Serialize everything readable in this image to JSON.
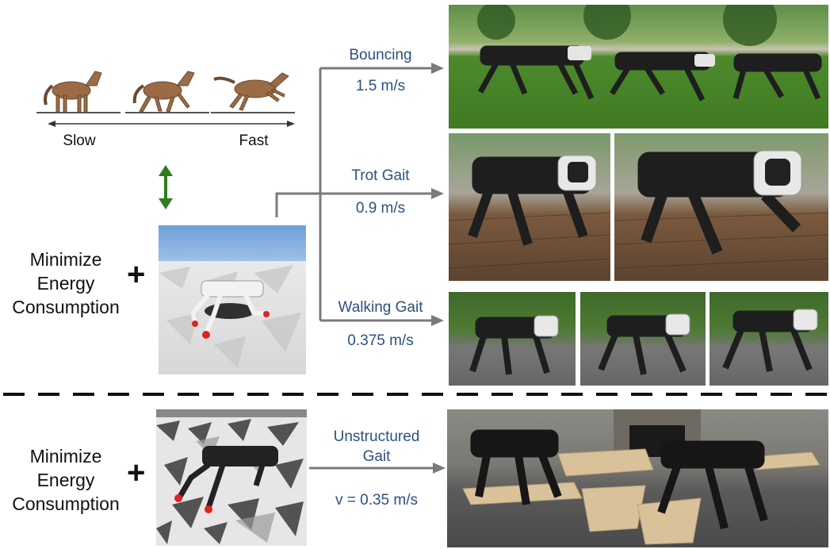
{
  "speed_scale": {
    "slow": "Slow",
    "fast": "Fast"
  },
  "objective_top": {
    "line1": "Minimize",
    "line2": "Energy",
    "line3": "Consumption",
    "plus": "+"
  },
  "objective_bottom": {
    "line1": "Minimize",
    "line2": "Energy",
    "line3": "Consumption",
    "plus": "+"
  },
  "gaits": [
    {
      "name": "Bouncing",
      "speed": "1.5 m/s"
    },
    {
      "name": "Trot Gait",
      "speed": "0.9 m/s"
    },
    {
      "name": "Walking Gait",
      "speed": "0.375 m/s"
    }
  ],
  "unstructured": {
    "line1": "Unstructured",
    "line2": "Gait",
    "speed": "v = 0.35 m/s"
  },
  "colors": {
    "arrow": "#7a7a7a",
    "label_blue": "#2f4f7f",
    "green_arrow": "#2e7d1e",
    "horse": "#9a6b45",
    "grass": "#4d8a2c",
    "robot": "#1e1e1e"
  }
}
